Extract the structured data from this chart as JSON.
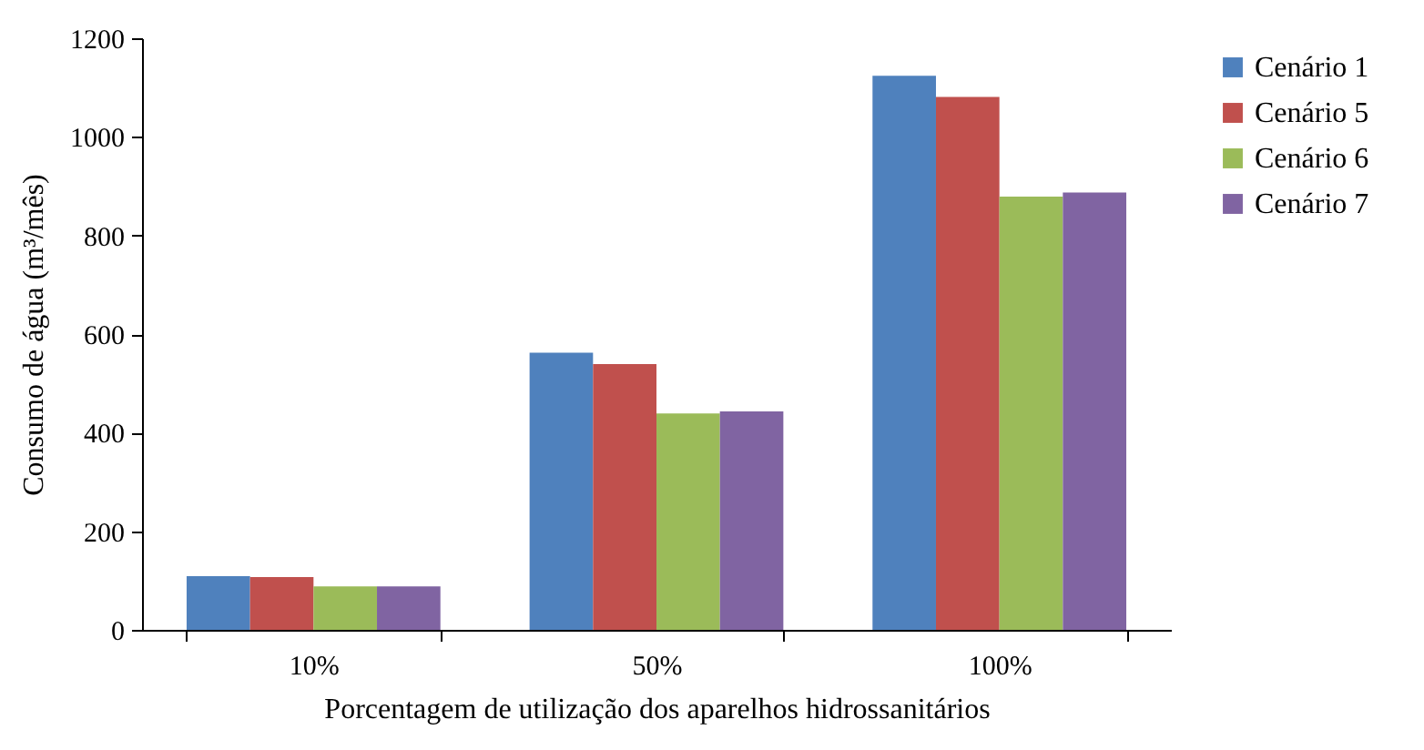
{
  "chart_data": {
    "type": "bar",
    "xlabel": "Porcentagem de utilização dos aparelhos hidrossanitários",
    "ylabel": "Consumo de água (m³/mês)",
    "categories": [
      "10%",
      "50%",
      "100%"
    ],
    "series": [
      {
        "name": "Cenário 1",
        "color": "#4f81bd",
        "values": [
          109,
          562,
          1124
        ]
      },
      {
        "name": "Cenário 5",
        "color": "#c0504d",
        "values": [
          107,
          539,
          1081
        ]
      },
      {
        "name": "Cenário 6",
        "color": "#9bbb59",
        "values": [
          88,
          439,
          879
        ]
      },
      {
        "name": "Cenário 7",
        "color": "#8064a2",
        "values": [
          88,
          443,
          887
        ]
      }
    ],
    "ylim": [
      0,
      1200
    ],
    "yticks": [
      0,
      200,
      400,
      600,
      800,
      1000,
      1200
    ],
    "grid": false,
    "legend": "right"
  }
}
